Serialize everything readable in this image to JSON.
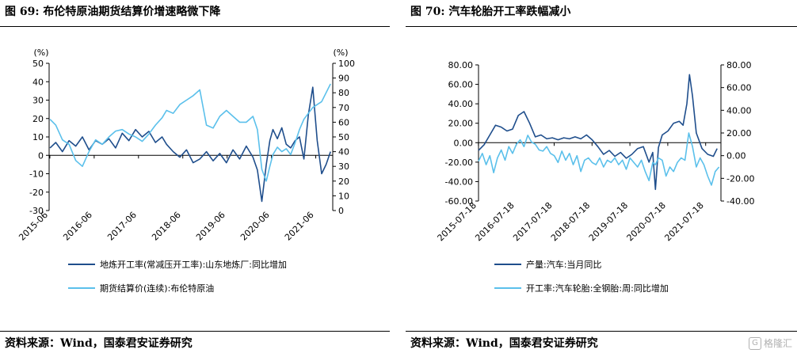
{
  "colors": {
    "dark": "#1F4E8C",
    "light": "#5BC0EB"
  },
  "left": {
    "title": "图 69: 布伦特原油期货结算价增速略微下降",
    "source": "资料来源：Wind，国泰君安证券研究",
    "chart_data": {
      "type": "line",
      "y_left_unit": "(%)",
      "y_right_unit": "(%)",
      "ylim_left": [
        -30,
        50
      ],
      "ylim_right": [
        0,
        100
      ],
      "y_left_ticks": [
        "50",
        "40",
        "30",
        "20",
        "10",
        "0",
        "-10",
        "-20",
        "-30"
      ],
      "y_right_ticks": [
        "100",
        "90",
        "80",
        "70",
        "60",
        "50",
        "40",
        "30",
        "20",
        "10",
        "0"
      ],
      "x_ticks": [
        "2015-06",
        "2016-06",
        "2017-06",
        "2018-06",
        "2019-06",
        "2020-06",
        "2021-06"
      ],
      "xlim": [
        2015.4,
        2021.8
      ],
      "series": [
        {
          "name": "地炼开工率(常减压开工率):山东地炼厂:同比增加",
          "axis": "left",
          "color_key": "dark",
          "x": [
            2015.42,
            2015.55,
            2015.7,
            2015.85,
            2016.0,
            2016.15,
            2016.3,
            2016.45,
            2016.6,
            2016.75,
            2016.9,
            2017.05,
            2017.2,
            2017.35,
            2017.5,
            2017.65,
            2017.8,
            2017.95,
            2018.05,
            2018.2,
            2018.35,
            2018.5,
            2018.65,
            2018.8,
            2018.95,
            2019.1,
            2019.25,
            2019.4,
            2019.55,
            2019.7,
            2019.85,
            2020.0,
            2020.1,
            2020.2,
            2020.3,
            2020.38,
            2020.45,
            2020.55,
            2020.65,
            2020.75,
            2020.85,
            2020.95,
            2021.05,
            2021.15,
            2021.25,
            2021.35,
            2021.45,
            2021.55,
            2021.65,
            2021.75
          ],
          "y": [
            4,
            7,
            2,
            8,
            5,
            10,
            3,
            8,
            6,
            9,
            4,
            12,
            8,
            14,
            10,
            13,
            7,
            10,
            6,
            2,
            -1,
            3,
            -4,
            -2,
            2,
            -3,
            1,
            -4,
            3,
            -2,
            5,
            -1,
            -8,
            -25,
            -5,
            8,
            14,
            9,
            15,
            6,
            4,
            8,
            10,
            -2,
            22,
            37,
            8,
            -10,
            -5,
            2
          ]
        },
        {
          "name": "期货结算价(连续):布伦特原油",
          "axis": "right",
          "color_key": "light",
          "x": [
            2015.42,
            2015.55,
            2015.7,
            2015.85,
            2016.0,
            2016.15,
            2016.3,
            2016.45,
            2016.6,
            2016.75,
            2016.9,
            2017.05,
            2017.2,
            2017.35,
            2017.5,
            2017.65,
            2017.8,
            2017.95,
            2018.05,
            2018.2,
            2018.35,
            2018.5,
            2018.65,
            2018.8,
            2018.95,
            2019.1,
            2019.25,
            2019.4,
            2019.55,
            2019.7,
            2019.85,
            2020.0,
            2020.1,
            2020.2,
            2020.3,
            2020.38,
            2020.45,
            2020.55,
            2020.65,
            2020.75,
            2020.85,
            2020.95,
            2021.05,
            2021.15,
            2021.25,
            2021.35,
            2021.45,
            2021.55,
            2021.65,
            2021.75
          ],
          "y": [
            62,
            58,
            48,
            45,
            34,
            30,
            40,
            48,
            45,
            50,
            54,
            55,
            52,
            50,
            47,
            52,
            58,
            63,
            68,
            66,
            72,
            75,
            78,
            82,
            58,
            56,
            64,
            68,
            64,
            60,
            60,
            64,
            55,
            28,
            20,
            30,
            38,
            43,
            40,
            42,
            38,
            46,
            55,
            62,
            66,
            70,
            72,
            74,
            80,
            86
          ]
        }
      ]
    }
  },
  "right": {
    "title": "图 70: 汽车轮胎开工率跌幅减小",
    "source": "资料来源：Wind，国泰君安证券研究",
    "watermark": "格隆汇",
    "chart_data": {
      "type": "line",
      "ylim_left": [
        -60,
        80
      ],
      "ylim_right": [
        -40,
        80
      ],
      "y_left_ticks": [
        "80.00",
        "60.00",
        "40.00",
        "20.00",
        "0.00",
        "-20.00",
        "-40.00",
        "-60.00"
      ],
      "y_right_ticks": [
        "80.00",
        "60.00",
        "40.00",
        "20.00",
        "0.00",
        "-20.00",
        "-40.00"
      ],
      "x_ticks": [
        "2015-07-18",
        "2016-07-18",
        "2017-07-18",
        "2018-07-18",
        "2019-07-18",
        "2020-07-18",
        "2021-07-18"
      ],
      "xlim": [
        2015.55,
        2021.95
      ],
      "series": [
        {
          "name": "产量:汽车:当月同比",
          "axis": "left",
          "color_key": "dark",
          "x": [
            2015.55,
            2015.7,
            2015.85,
            2016.0,
            2016.15,
            2016.3,
            2016.45,
            2016.6,
            2016.75,
            2016.9,
            2017.05,
            2017.2,
            2017.35,
            2017.5,
            2017.65,
            2017.8,
            2017.95,
            2018.1,
            2018.25,
            2018.4,
            2018.55,
            2018.7,
            2018.85,
            2019.0,
            2019.15,
            2019.3,
            2019.45,
            2019.6,
            2019.75,
            2019.9,
            2020.05,
            2020.15,
            2020.22,
            2020.3,
            2020.4,
            2020.55,
            2020.7,
            2020.85,
            2020.95,
            2021.05,
            2021.12,
            2021.2,
            2021.3,
            2021.45,
            2021.6,
            2021.75,
            2021.85
          ],
          "y": [
            -8,
            -2,
            8,
            18,
            16,
            12,
            14,
            28,
            32,
            20,
            6,
            8,
            4,
            5,
            3,
            5,
            4,
            6,
            4,
            8,
            3,
            -4,
            -12,
            -8,
            -14,
            -10,
            -16,
            -12,
            -6,
            -4,
            -20,
            -10,
            -48,
            -5,
            8,
            12,
            20,
            22,
            18,
            40,
            70,
            48,
            10,
            -6,
            -12,
            -14,
            -6
          ]
        },
        {
          "name": "开工率:汽车轮胎:全钢胎:周:同比增加",
          "axis": "right",
          "color_key": "light",
          "x": [
            2015.55,
            2015.65,
            2015.75,
            2015.85,
            2015.95,
            2016.05,
            2016.15,
            2016.25,
            2016.35,
            2016.45,
            2016.55,
            2016.65,
            2016.75,
            2016.85,
            2016.95,
            2017.05,
            2017.15,
            2017.25,
            2017.35,
            2017.45,
            2017.55,
            2017.65,
            2017.75,
            2017.85,
            2017.95,
            2018.05,
            2018.15,
            2018.25,
            2018.35,
            2018.45,
            2018.55,
            2018.65,
            2018.75,
            2018.85,
            2018.95,
            2019.05,
            2019.15,
            2019.25,
            2019.35,
            2019.45,
            2019.55,
            2019.65,
            2019.75,
            2019.85,
            2019.95,
            2020.05,
            2020.15,
            2020.22,
            2020.3,
            2020.4,
            2020.5,
            2020.6,
            2020.7,
            2020.8,
            2020.9,
            2021.0,
            2021.1,
            2021.2,
            2021.3,
            2021.4,
            2021.5,
            2021.6,
            2021.7,
            2021.8,
            2021.9
          ],
          "y": [
            -5,
            2,
            -8,
            0,
            -15,
            -2,
            5,
            -4,
            8,
            2,
            10,
            14,
            8,
            18,
            12,
            10,
            5,
            4,
            8,
            2,
            0,
            -6,
            4,
            -4,
            2,
            -8,
            0,
            -14,
            -4,
            -2,
            -6,
            -8,
            -2,
            -10,
            -4,
            -6,
            -2,
            -8,
            -4,
            -12,
            -2,
            -6,
            -10,
            -4,
            -14,
            -22,
            -6,
            -8,
            -2,
            -4,
            -18,
            -10,
            -14,
            -6,
            -2,
            -4,
            20,
            8,
            -10,
            -2,
            -8,
            -18,
            -26,
            -14,
            -10
          ]
        }
      ]
    }
  }
}
